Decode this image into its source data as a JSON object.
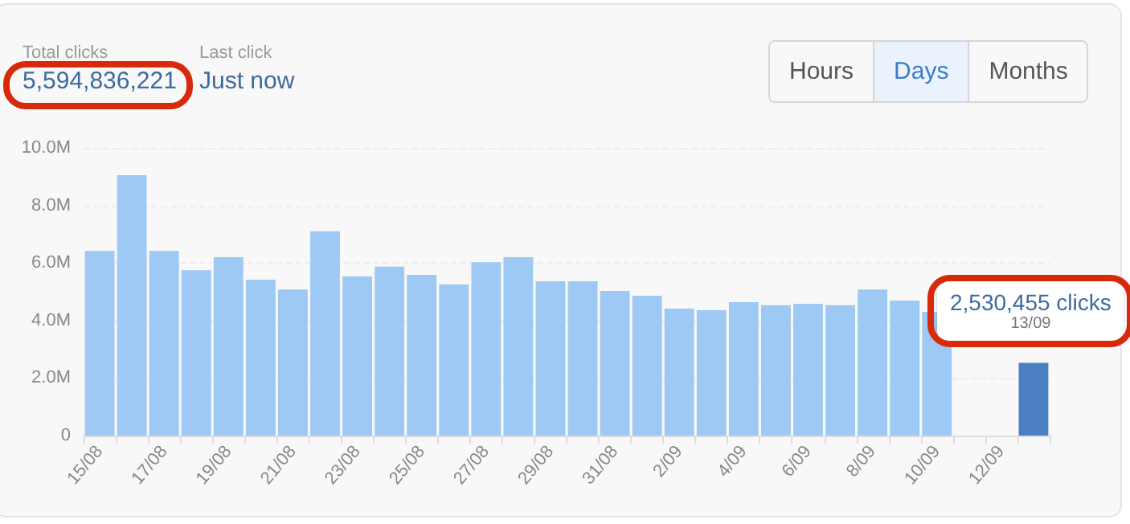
{
  "chart_data": {
    "type": "bar",
    "categories": [
      "15/08",
      null,
      "17/08",
      null,
      "19/08",
      null,
      "21/08",
      null,
      "23/08",
      null,
      "25/08",
      null,
      "27/08",
      null,
      "29/08",
      null,
      "31/08",
      null,
      "2/09",
      null,
      "4/09",
      null,
      "6/09",
      null,
      "8/09",
      null,
      "10/09",
      null,
      "12/09",
      null
    ],
    "values": [
      6420000,
      9050000,
      6420000,
      5750000,
      6200000,
      5420000,
      5080000,
      7100000,
      5530000,
      5870000,
      5590000,
      5250000,
      6030000,
      6200000,
      5360000,
      5360000,
      5030000,
      4860000,
      4410000,
      4360000,
      4640000,
      4530000,
      4580000,
      4530000,
      5080000,
      4690000,
      4300000,
      null,
      null,
      2530455
    ],
    "colors": [
      "#9ec9f5",
      "#9ec9f5",
      "#9ec9f5",
      "#9ec9f5",
      "#9ec9f5",
      "#9ec9f5",
      "#9ec9f5",
      "#9ec9f5",
      "#9ec9f5",
      "#9ec9f5",
      "#9ec9f5",
      "#9ec9f5",
      "#9ec9f5",
      "#9ec9f5",
      "#9ec9f5",
      "#9ec9f5",
      "#9ec9f5",
      "#9ec9f5",
      "#9ec9f5",
      "#9ec9f5",
      "#9ec9f5",
      "#9ec9f5",
      "#9ec9f5",
      "#9ec9f5",
      "#9ec9f5",
      "#9ec9f5",
      "#9ec9f5",
      "#9ec9f5",
      "#9ec9f5",
      "#4a7fc1"
    ],
    "ylim": [
      0,
      10000000
    ],
    "yticks": [
      0,
      {
        "value": 2000000,
        "label": "2.0M"
      },
      {
        "value": 4000000,
        "label": "4.0M"
      },
      {
        "value": 6000000,
        "label": "6.0M"
      },
      {
        "value": 8000000,
        "label": "8.0M"
      },
      {
        "value": 10000000,
        "label": "10.0M"
      }
    ],
    "grid": "y",
    "annotations": [
      "Total clicks",
      "5,594,836,221",
      "Last click",
      "Just now",
      "Hours",
      "Days",
      "Months",
      "2,530,455 clicks",
      "13/09"
    ]
  }
}
